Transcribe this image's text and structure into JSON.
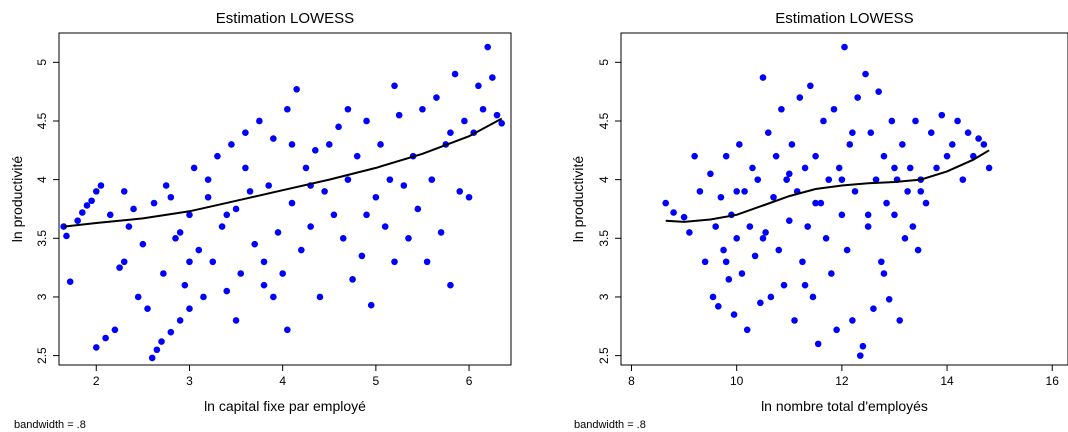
{
  "chart_data": [
    {
      "type": "scatter",
      "title": "Estimation LOWESS",
      "xlabel": "ln capital fixe par employé",
      "ylabel": "ln productivité",
      "note": "bandwidth = .8",
      "xlim": [
        1.6,
        6.45
      ],
      "ylim": [
        2.42,
        5.25
      ],
      "xticks": [
        2,
        3,
        4,
        5,
        6
      ],
      "yticks": [
        2.5,
        3,
        3.5,
        4,
        4.5,
        5
      ],
      "grid": false,
      "marker_color": "#0000ff",
      "line_color": "#000000",
      "lowess": [
        [
          1.65,
          3.6
        ],
        [
          2.0,
          3.63
        ],
        [
          2.5,
          3.67
        ],
        [
          3.0,
          3.73
        ],
        [
          3.5,
          3.82
        ],
        [
          4.0,
          3.91
        ],
        [
          4.5,
          4.0
        ],
        [
          5.0,
          4.1
        ],
        [
          5.5,
          4.22
        ],
        [
          6.0,
          4.37
        ],
        [
          6.35,
          4.52
        ]
      ],
      "points": [
        [
          1.65,
          3.6
        ],
        [
          1.68,
          3.52
        ],
        [
          1.72,
          3.13
        ],
        [
          1.8,
          3.65
        ],
        [
          1.85,
          3.72
        ],
        [
          1.9,
          3.78
        ],
        [
          1.95,
          3.82
        ],
        [
          2.0,
          2.57
        ],
        [
          2.0,
          3.9
        ],
        [
          2.05,
          3.95
        ],
        [
          2.1,
          2.65
        ],
        [
          2.15,
          3.7
        ],
        [
          2.2,
          2.72
        ],
        [
          2.25,
          3.25
        ],
        [
          2.3,
          3.3
        ],
        [
          2.35,
          3.6
        ],
        [
          2.4,
          3.75
        ],
        [
          2.45,
          3.0
        ],
        [
          2.5,
          3.45
        ],
        [
          2.55,
          2.9
        ],
        [
          2.6,
          2.48
        ],
        [
          2.62,
          3.8
        ],
        [
          2.65,
          2.55
        ],
        [
          2.7,
          2.62
        ],
        [
          2.72,
          3.2
        ],
        [
          2.75,
          3.95
        ],
        [
          2.8,
          2.7
        ],
        [
          2.85,
          3.5
        ],
        [
          2.9,
          2.8
        ],
        [
          2.95,
          3.1
        ],
        [
          3.0,
          2.9
        ],
        [
          3.0,
          3.7
        ],
        [
          3.05,
          4.1
        ],
        [
          3.1,
          3.4
        ],
        [
          3.15,
          3.0
        ],
        [
          3.2,
          3.85
        ],
        [
          3.25,
          3.3
        ],
        [
          3.3,
          4.2
        ],
        [
          3.35,
          3.6
        ],
        [
          3.4,
          3.05
        ],
        [
          3.45,
          4.3
        ],
        [
          3.5,
          3.75
        ],
        [
          3.55,
          3.2
        ],
        [
          3.6,
          4.4
        ],
        [
          3.65,
          3.9
        ],
        [
          3.7,
          3.45
        ],
        [
          3.75,
          4.5
        ],
        [
          3.8,
          3.1
        ],
        [
          3.85,
          3.95
        ],
        [
          3.9,
          4.35
        ],
        [
          3.95,
          3.55
        ],
        [
          4.0,
          3.2
        ],
        [
          4.05,
          4.6
        ],
        [
          4.05,
          2.72
        ],
        [
          4.1,
          3.8
        ],
        [
          4.15,
          4.77
        ],
        [
          4.2,
          3.4
        ],
        [
          4.25,
          4.1
        ],
        [
          4.3,
          3.6
        ],
        [
          4.35,
          4.25
        ],
        [
          4.4,
          3.0
        ],
        [
          4.45,
          3.9
        ],
        [
          4.5,
          4.3
        ],
        [
          4.55,
          3.7
        ],
        [
          4.6,
          4.45
        ],
        [
          4.65,
          3.5
        ],
        [
          4.7,
          4.0
        ],
        [
          4.75,
          3.15
        ],
        [
          4.8,
          4.2
        ],
        [
          4.85,
          3.35
        ],
        [
          4.9,
          4.5
        ],
        [
          4.95,
          2.93
        ],
        [
          5.0,
          3.85
        ],
        [
          5.05,
          4.3
        ],
        [
          5.1,
          3.6
        ],
        [
          5.15,
          4.0
        ],
        [
          5.2,
          3.3
        ],
        [
          5.25,
          4.55
        ],
        [
          5.3,
          3.95
        ],
        [
          5.35,
          3.5
        ],
        [
          5.4,
          4.2
        ],
        [
          5.45,
          3.75
        ],
        [
          5.5,
          4.6
        ],
        [
          5.55,
          3.3
        ],
        [
          5.6,
          4.0
        ],
        [
          5.65,
          4.7
        ],
        [
          5.7,
          3.55
        ],
        [
          5.75,
          4.3
        ],
        [
          5.8,
          3.1
        ],
        [
          5.85,
          4.9
        ],
        [
          5.9,
          3.9
        ],
        [
          5.95,
          4.5
        ],
        [
          6.0,
          3.85
        ],
        [
          6.05,
          4.4
        ],
        [
          6.1,
          4.8
        ],
        [
          6.15,
          4.6
        ],
        [
          6.2,
          5.13
        ],
        [
          6.25,
          4.87
        ],
        [
          6.3,
          4.55
        ],
        [
          6.35,
          4.48
        ],
        [
          3.5,
          2.8
        ],
        [
          3.8,
          3.3
        ],
        [
          4.3,
          3.95
        ],
        [
          2.9,
          3.55
        ],
        [
          3.2,
          4.0
        ],
        [
          4.7,
          4.6
        ],
        [
          5.2,
          4.8
        ],
        [
          3.6,
          4.1
        ],
        [
          3.0,
          3.3
        ],
        [
          2.8,
          3.85
        ],
        [
          4.9,
          3.7
        ],
        [
          4.1,
          4.3
        ],
        [
          3.4,
          3.7
        ],
        [
          5.8,
          4.4
        ],
        [
          2.3,
          3.9
        ],
        [
          3.9,
          3.0
        ]
      ]
    },
    {
      "type": "scatter",
      "title": "Estimation LOWESS",
      "xlabel": "ln nombre total d'employés",
      "ylabel": "ln productivité",
      "note": "bandwidth = .8",
      "xlim": [
        7.8,
        16.3
      ],
      "ylim": [
        2.42,
        5.25
      ],
      "xticks": [
        8,
        10,
        12,
        14,
        16
      ],
      "yticks": [
        2.5,
        3,
        3.5,
        4,
        4.5,
        5
      ],
      "grid": false,
      "marker_color": "#0000ff",
      "line_color": "#000000",
      "lowess": [
        [
          8.65,
          3.65
        ],
        [
          9.0,
          3.64
        ],
        [
          9.5,
          3.66
        ],
        [
          10.0,
          3.7
        ],
        [
          10.5,
          3.78
        ],
        [
          11.0,
          3.86
        ],
        [
          11.5,
          3.92
        ],
        [
          12.0,
          3.95
        ],
        [
          12.5,
          3.97
        ],
        [
          13.0,
          3.98
        ],
        [
          13.5,
          4.0
        ],
        [
          14.0,
          4.07
        ],
        [
          14.5,
          4.17
        ],
        [
          14.8,
          4.25
        ]
      ],
      "points": [
        [
          8.65,
          3.8
        ],
        [
          8.8,
          3.72
        ],
        [
          9.0,
          3.68
        ],
        [
          9.1,
          3.55
        ],
        [
          9.2,
          4.2
        ],
        [
          9.3,
          3.9
        ],
        [
          9.4,
          3.3
        ],
        [
          9.5,
          4.05
        ],
        [
          9.55,
          3.0
        ],
        [
          9.6,
          3.6
        ],
        [
          9.65,
          2.92
        ],
        [
          9.7,
          3.85
        ],
        [
          9.75,
          3.4
        ],
        [
          9.8,
          4.2
        ],
        [
          9.85,
          3.15
        ],
        [
          9.9,
          3.7
        ],
        [
          9.95,
          2.85
        ],
        [
          10.0,
          3.5
        ],
        [
          10.05,
          4.3
        ],
        [
          10.1,
          3.2
        ],
        [
          10.15,
          3.9
        ],
        [
          10.2,
          2.72
        ],
        [
          10.25,
          3.6
        ],
        [
          10.3,
          4.1
        ],
        [
          10.35,
          3.35
        ],
        [
          10.4,
          4.0
        ],
        [
          10.45,
          2.95
        ],
        [
          10.5,
          4.87
        ],
        [
          10.55,
          3.55
        ],
        [
          10.6,
          4.4
        ],
        [
          10.65,
          3.0
        ],
        [
          10.7,
          3.85
        ],
        [
          10.75,
          4.2
        ],
        [
          10.8,
          3.4
        ],
        [
          10.85,
          4.6
        ],
        [
          10.9,
          3.1
        ],
        [
          10.95,
          4.0
        ],
        [
          11.0,
          3.65
        ],
        [
          11.05,
          4.3
        ],
        [
          11.1,
          2.8
        ],
        [
          11.15,
          3.9
        ],
        [
          11.2,
          4.7
        ],
        [
          11.25,
          3.3
        ],
        [
          11.3,
          4.1
        ],
        [
          11.35,
          3.6
        ],
        [
          11.4,
          4.8
        ],
        [
          11.45,
          3.0
        ],
        [
          11.5,
          4.2
        ],
        [
          11.55,
          2.6
        ],
        [
          11.6,
          3.8
        ],
        [
          11.65,
          4.5
        ],
        [
          11.7,
          3.5
        ],
        [
          11.75,
          4.0
        ],
        [
          11.8,
          3.2
        ],
        [
          11.85,
          4.6
        ],
        [
          11.9,
          2.72
        ],
        [
          11.95,
          4.1
        ],
        [
          12.0,
          3.7
        ],
        [
          12.05,
          5.13
        ],
        [
          12.1,
          3.4
        ],
        [
          12.15,
          4.3
        ],
        [
          12.2,
          2.8
        ],
        [
          12.25,
          3.9
        ],
        [
          12.3,
          4.7
        ],
        [
          12.35,
          2.5
        ],
        [
          12.4,
          2.58
        ],
        [
          12.45,
          4.9
        ],
        [
          12.5,
          3.6
        ],
        [
          12.55,
          4.4
        ],
        [
          12.6,
          2.9
        ],
        [
          12.65,
          4.0
        ],
        [
          12.7,
          4.75
        ],
        [
          12.75,
          3.3
        ],
        [
          12.8,
          4.2
        ],
        [
          12.85,
          3.8
        ],
        [
          12.9,
          2.98
        ],
        [
          12.95,
          4.5
        ],
        [
          13.0,
          3.7
        ],
        [
          13.05,
          4.0
        ],
        [
          13.1,
          2.8
        ],
        [
          13.15,
          4.3
        ],
        [
          13.2,
          3.5
        ],
        [
          13.25,
          3.9
        ],
        [
          13.3,
          4.1
        ],
        [
          13.35,
          3.6
        ],
        [
          13.4,
          4.5
        ],
        [
          13.45,
          3.4
        ],
        [
          13.5,
          4.0
        ],
        [
          13.6,
          3.8
        ],
        [
          13.7,
          4.4
        ],
        [
          13.8,
          4.1
        ],
        [
          13.9,
          4.55
        ],
        [
          14.0,
          4.2
        ],
        [
          14.1,
          4.3
        ],
        [
          14.2,
          4.5
        ],
        [
          14.3,
          4.0
        ],
        [
          14.4,
          4.4
        ],
        [
          14.5,
          4.2
        ],
        [
          14.6,
          4.35
        ],
        [
          14.7,
          4.3
        ],
        [
          14.8,
          4.1
        ],
        [
          10.0,
          3.9
        ],
        [
          11.0,
          4.05
        ],
        [
          12.0,
          4.0
        ],
        [
          13.0,
          4.1
        ],
        [
          10.5,
          3.5
        ],
        [
          11.5,
          3.8
        ],
        [
          12.5,
          3.7
        ],
        [
          13.5,
          3.9
        ],
        [
          9.8,
          3.3
        ],
        [
          12.2,
          4.4
        ],
        [
          11.3,
          3.1
        ],
        [
          12.8,
          3.2
        ]
      ]
    }
  ]
}
